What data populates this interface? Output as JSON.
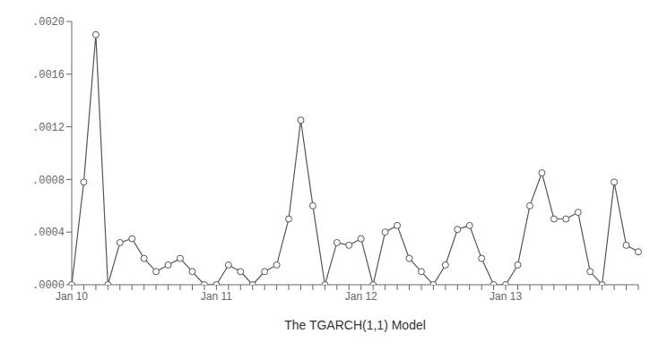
{
  "chart_data": {
    "type": "line",
    "xlabel": "The TGARCH(1,1) Model",
    "categories": [
      "Jan 10",
      null,
      null,
      null,
      null,
      null,
      null,
      null,
      null,
      null,
      null,
      null,
      "Jan 11",
      null,
      null,
      null,
      null,
      null,
      null,
      null,
      null,
      null,
      null,
      null,
      "Jan 12",
      null,
      null,
      null,
      null,
      null,
      null,
      null,
      null,
      null,
      null,
      null,
      "Jan 13",
      null,
      null,
      null,
      null,
      null,
      null,
      null,
      null,
      null,
      null,
      null
    ],
    "values": [
      0.0,
      0.00078,
      0.0019,
      0.0,
      0.00032,
      0.00035,
      0.0002,
      0.0001,
      0.00015,
      0.0002,
      0.0001,
      0.0,
      0.0,
      0.00015,
      0.0001,
      0.0,
      0.0001,
      0.00015,
      0.0005,
      0.00125,
      0.0006,
      0.0,
      0.00032,
      0.0003,
      0.00035,
      0.0,
      0.0004,
      0.00045,
      0.0002,
      0.0001,
      0.0,
      0.00015,
      0.00042,
      0.00045,
      0.0002,
      0.0,
      0.0,
      0.00015,
      0.0006,
      0.00085,
      0.0005,
      0.0005,
      0.00055,
      0.0001,
      0.0,
      0.00078,
      0.0003,
      0.00025
    ],
    "color": "#555555",
    "marker": "circle",
    "ylim": [
      0.0,
      0.002
    ],
    "yticks": [
      {
        "value": 0.0,
        "label": ".0000"
      },
      {
        "value": 0.0004,
        "label": ".0004"
      },
      {
        "value": 0.0008,
        "label": ".0008"
      },
      {
        "value": 0.0012,
        "label": ".0012"
      },
      {
        "value": 0.0016,
        "label": ".0016"
      },
      {
        "value": 0.002,
        "label": ".0020"
      }
    ],
    "grid": false
  }
}
